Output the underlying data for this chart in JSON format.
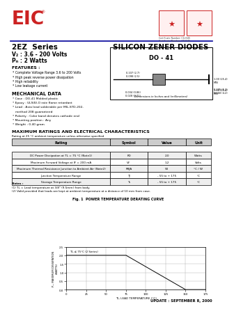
{
  "bg_color": "#ffffff",
  "eic_color": "#cc2222",
  "title_series": "2EZ  Series",
  "title_type": "SILICON ZENER DIODES",
  "vz_text": "V₂ : 3.6 - 200 Volts",
  "pd_text": "Pₙ : 2 Watts",
  "do_label": "DO - 41",
  "features_title": "FEATURES :",
  "features": [
    "* Complete Voltage Range 3.6 to 200 Volts",
    "* High peak reverse power dissipation",
    "* High reliability",
    "* Low leakage current"
  ],
  "mech_title": "MECHANICAL DATA",
  "mech": [
    "* Case : DO-41 Molded plastic",
    "* Epoxy : UL94V-O rate flame retardant",
    "* Lead : Axia lead solderable per MIL-STD-202,",
    "   method 208 guaranteed",
    "* Polarity : Color band denotes cathode end",
    "* Mounting position : Any",
    "* Weight : 0.40 gram"
  ],
  "max_title": "MAXIMUM RATINGS AND ELECTRICAL CHARACTERISTICS",
  "max_sub": "Rating at 25 °C ambient temperature unless otherwise specified",
  "table_headers": [
    "Rating",
    "Symbol",
    "Value",
    "Unit"
  ],
  "table_rows": [
    [
      "DC Power Dissipation at TL = 75 °C (Note1)",
      "PD",
      "2.0",
      "Watts"
    ],
    [
      "Maximum Forward Voltage at IF = 200 mA",
      "VF",
      "1.2",
      "Volts"
    ],
    [
      "Maximum Thermal Resistance Junction to Ambient Air (Note2)",
      "RθJA",
      "50",
      "°C / W"
    ],
    [
      "Junction Temperature Range",
      "TJ",
      "- 55 to + 175",
      "°C"
    ],
    [
      "Storage Temperature Range",
      "Ts",
      "- 55 to + 175",
      "°C"
    ]
  ],
  "notes": [
    "Notes :",
    "(1) TL = Lead temperature at 3/8\" (9.5mm) from body.",
    "(2) Valid provided that leads are kept at ambient temperature at a distance of 10 mm from case."
  ],
  "graph_title": "Fig. 1  POWER TEMPERATURE DERATING CURVE",
  "graph_xlabel": "TL, LEAD TEMPERATURE (°C)",
  "graph_ylabel": "Pₙ, MAXIMUM DISSIPATION\n(WATTS)",
  "graph_annotation": "TL ≤ 75°C (2 Series)",
  "graph_x": [
    0,
    25,
    50,
    75,
    100,
    125,
    150,
    175
  ],
  "graph_y_line": [
    2.0,
    2.0,
    2.0,
    2.0,
    1.333,
    0.667,
    0.0,
    0.0
  ],
  "graph_ylim": [
    0,
    2.5
  ],
  "graph_xlim": [
    0,
    175
  ],
  "update_text": "UPDATE : SEPTEMBER 8, 2000",
  "sep_color": "#000099",
  "dim_text1": "0.107 (2.7)\n0.098 (2.5)",
  "dim_text2": "1.00 (25.4)\nMIN",
  "dim_text3": "0.205 (5.2)\n0.168 (4.2)",
  "dim_text4": "0.034 (0.86)\n0.028 (0.71)",
  "dim_text5": "1.00 (25.4)\nMIN",
  "dim_footer": "Dimensions in Inches and (millimeters)"
}
